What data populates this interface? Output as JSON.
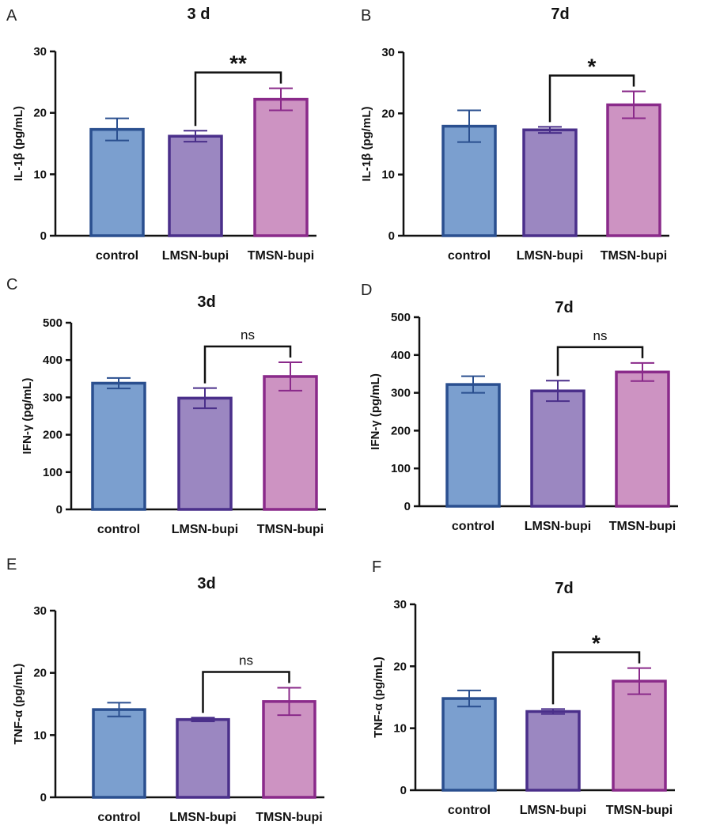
{
  "colors": {
    "control_fill": "#7b9fcf",
    "control_stroke": "#2a4f8f",
    "lmsn_fill": "#9b87c1",
    "lmsn_stroke": "#4a2f8a",
    "tmsn_fill": "#cd93c2",
    "tmsn_stroke": "#8a2a8a",
    "axis": "#111111"
  },
  "chart_data": [
    {
      "type": "bar",
      "panel": "A",
      "title": "3 d",
      "ylabel": "IL-1β (pg/mL)",
      "ylim": [
        0,
        30
      ],
      "yticks": [
        0,
        10,
        20,
        30
      ],
      "categories": [
        "control",
        "LMSN-bupi",
        "TMSN-bupi"
      ],
      "values": [
        17.3,
        16.2,
        22.2
      ],
      "errors": [
        1.8,
        0.9,
        1.8
      ],
      "significance": {
        "from": 1,
        "to": 2,
        "label": "**"
      }
    },
    {
      "type": "bar",
      "panel": "B",
      "title": "7d",
      "ylabel": "IL-1β (pg/mL)",
      "ylim": [
        0,
        30
      ],
      "yticks": [
        0,
        10,
        20,
        30
      ],
      "categories": [
        "control",
        "LMSN-bupi",
        "TMSN-bupi"
      ],
      "values": [
        17.9,
        17.3,
        21.4
      ],
      "errors": [
        2.6,
        0.5,
        2.2
      ],
      "significance": {
        "from": 1,
        "to": 2,
        "label": "*"
      }
    },
    {
      "type": "bar",
      "panel": "C",
      "title": "3d",
      "ylabel": "IFN-γ (pg/mL)",
      "ylim": [
        0,
        500
      ],
      "yticks": [
        0,
        100,
        200,
        300,
        400,
        500
      ],
      "categories": [
        "control",
        "LMSN-bupi",
        "TMSN-bupi"
      ],
      "values": [
        338,
        298,
        356
      ],
      "errors": [
        14,
        27,
        38
      ],
      "significance": {
        "from": 1,
        "to": 2,
        "label": "ns"
      }
    },
    {
      "type": "bar",
      "panel": "D",
      "title": "7d",
      "ylabel": "IFN-γ (pg/mL)",
      "ylim": [
        0,
        500
      ],
      "yticks": [
        0,
        100,
        200,
        300,
        400,
        500
      ],
      "categories": [
        "control",
        "LMSN-bupi",
        "TMSN-bupi"
      ],
      "values": [
        322,
        305,
        355
      ],
      "errors": [
        22,
        27,
        24
      ],
      "significance": {
        "from": 1,
        "to": 2,
        "label": "ns"
      }
    },
    {
      "type": "bar",
      "panel": "E",
      "title": "3d",
      "ylabel": "TNF-α (pg/mL)",
      "ylim": [
        0,
        30
      ],
      "yticks": [
        0,
        10,
        20,
        30
      ],
      "categories": [
        "control",
        "LMSN-bupi",
        "TMSN-bupi"
      ],
      "values": [
        14.1,
        12.5,
        15.4
      ],
      "errors": [
        1.1,
        0.3,
        2.2
      ],
      "significance": {
        "from": 1,
        "to": 2,
        "label": "ns"
      }
    },
    {
      "type": "bar",
      "panel": "F",
      "title": "7d",
      "ylabel": "TNF-α (pg/mL)",
      "ylim": [
        0,
        30
      ],
      "yticks": [
        0,
        10,
        20,
        30
      ],
      "categories": [
        "control",
        "LMSN-bupi",
        "TMSN-bupi"
      ],
      "values": [
        14.8,
        12.7,
        17.6
      ],
      "errors": [
        1.3,
        0.4,
        2.1
      ],
      "significance": {
        "from": 1,
        "to": 2,
        "label": "*"
      }
    }
  ]
}
